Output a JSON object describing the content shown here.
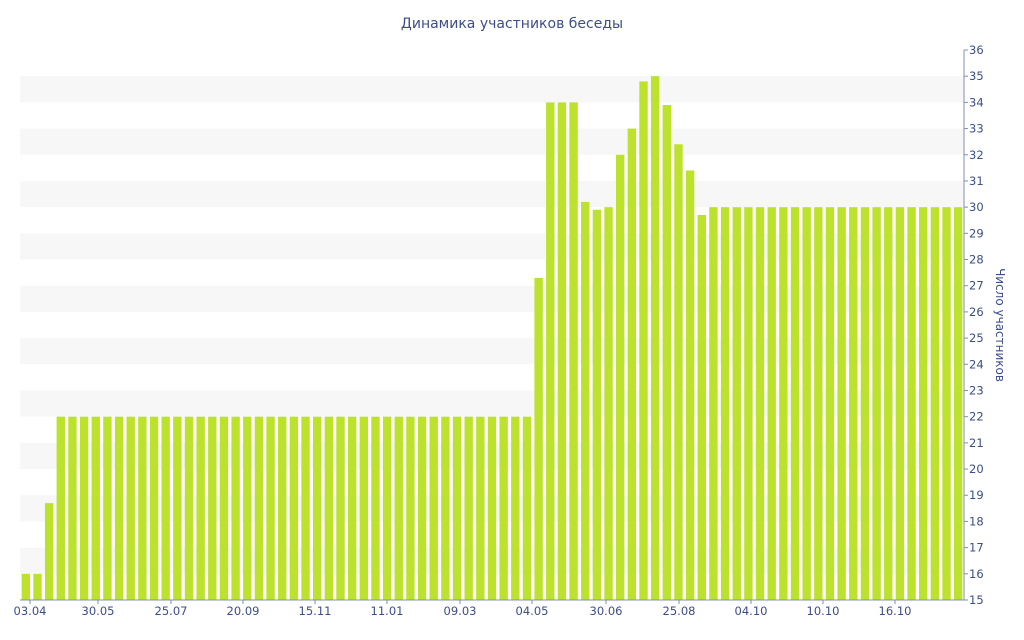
{
  "chart_data": {
    "type": "bar",
    "title": "Динамика участников беседы",
    "ylabel": "Число участников",
    "xlabel": "",
    "ylim": [
      15,
      36
    ],
    "y_ticks": [
      15,
      16,
      17,
      18,
      19,
      20,
      21,
      22,
      23,
      24,
      25,
      26,
      27,
      28,
      29,
      30,
      31,
      32,
      33,
      34,
      35,
      36
    ],
    "x_tick_labels": [
      "03.04",
      "30.05",
      "25.07",
      "20.09",
      "15.11",
      "11.01",
      "09.03",
      "04.05",
      "30.06",
      "25.08",
      "04.10",
      "10.10",
      "16.10"
    ],
    "grid": "alternating horizontal bands",
    "bar_color": "#bde22e",
    "band_color": "#f7f7f7",
    "text_color": "#3c4d8a",
    "values": [
      16,
      16,
      18.7,
      22,
      22,
      22,
      22,
      22,
      22,
      22,
      22,
      22,
      22,
      22,
      22,
      22,
      22,
      22,
      22,
      22,
      22,
      22,
      22,
      22,
      22,
      22,
      22,
      22,
      22,
      22,
      22,
      22,
      22,
      22,
      22,
      22,
      22,
      22,
      22,
      22,
      22,
      22,
      22,
      22,
      27.3,
      34,
      34,
      34,
      30.2,
      29.9,
      30,
      32,
      33,
      34.8,
      35,
      33.9,
      32.4,
      31.4,
      29.7,
      30,
      30,
      30,
      30,
      30,
      30,
      30,
      30,
      30,
      30,
      30,
      30,
      30,
      30,
      30,
      30,
      30,
      30,
      30,
      30,
      30,
      30
    ]
  }
}
